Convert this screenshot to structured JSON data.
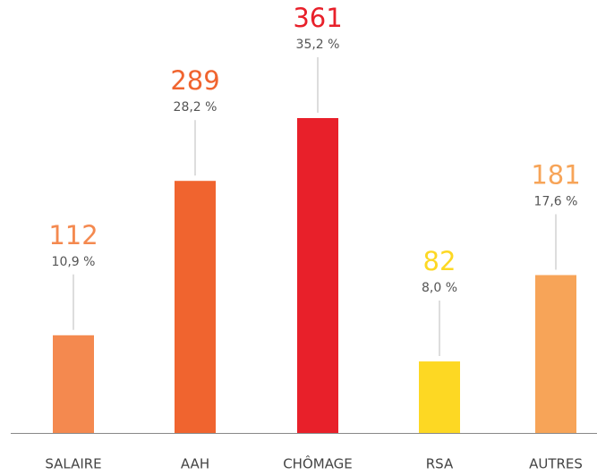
{
  "chart_data": {
    "type": "bar",
    "categories": [
      "SALAIRE",
      "AAH",
      "CHÔMAGE",
      "RSA",
      "AUTRES"
    ],
    "values": [
      112,
      289,
      361,
      82,
      181
    ],
    "shares": [
      10.9,
      28.2,
      35.2,
      8.0,
      17.6
    ],
    "share_labels": [
      "10,9 %",
      "28,2 %",
      "35,2 %",
      "8,0 %",
      "17,6 %"
    ],
    "colors": [
      "#f4894f",
      "#f0642f",
      "#e8202a",
      "#fdd823",
      "#f7a458"
    ]
  }
}
